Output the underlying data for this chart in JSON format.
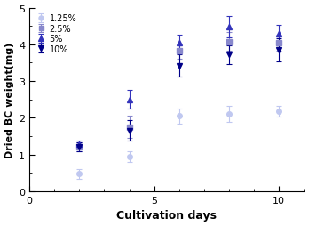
{
  "series": [
    {
      "label": "1.25%",
      "color": "#c0c8f0",
      "marker": "o",
      "markersize": 4,
      "x": [
        2,
        4,
        6,
        8,
        10
      ],
      "y": [
        0.48,
        0.95,
        2.05,
        2.1,
        2.18
      ],
      "yerr": [
        0.13,
        0.15,
        0.2,
        0.22,
        0.15
      ],
      "curve_start": 1,
      "curve_end": 11
    },
    {
      "label": "2.5%",
      "color": "#8888cc",
      "marker": "s",
      "markersize": 4,
      "x": [
        2,
        4,
        6,
        8,
        10
      ],
      "y": [
        1.22,
        1.75,
        3.82,
        4.08,
        4.05
      ],
      "yerr": [
        0.12,
        0.3,
        0.2,
        0.25,
        0.22
      ],
      "curve_start": 1,
      "curve_end": 11
    },
    {
      "label": "5%",
      "color": "#3333bb",
      "marker": "^",
      "markersize": 5,
      "x": [
        2,
        4,
        6,
        8,
        10
      ],
      "y": [
        1.28,
        2.5,
        4.05,
        4.48,
        4.28
      ],
      "yerr": [
        0.1,
        0.25,
        0.22,
        0.3,
        0.25
      ],
      "curve_start": 1,
      "curve_end": 11
    },
    {
      "label": "10%",
      "color": "#000088",
      "marker": "v",
      "markersize": 5,
      "x": [
        2,
        4,
        6,
        8,
        10
      ],
      "y": [
        1.22,
        1.65,
        3.42,
        3.72,
        3.85
      ],
      "yerr": [
        0.12,
        0.28,
        0.3,
        0.25,
        0.32
      ],
      "curve_start": 1,
      "curve_end": 11
    }
  ],
  "xlabel": "Cultivation days",
  "ylabel": "Dried BC weight(mg)",
  "xlim": [
    0,
    11
  ],
  "ylim": [
    0,
    5
  ],
  "xticks": [
    0,
    5,
    10
  ],
  "yticks": [
    0,
    1,
    2,
    3,
    4,
    5
  ],
  "background_color": "#ffffff",
  "legend_loc": "upper left"
}
